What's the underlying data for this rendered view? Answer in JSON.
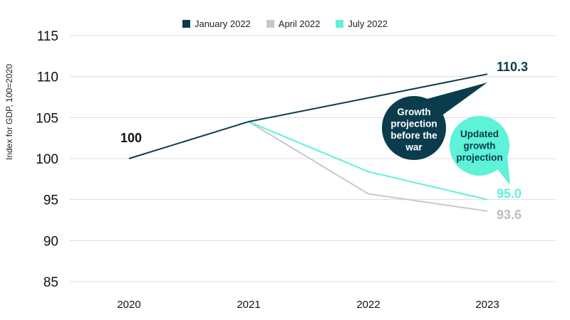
{
  "chart_data": {
    "type": "line",
    "ylabel": "Index for GDP, 100=2020",
    "xlabel": "",
    "ylim": [
      85,
      115
    ],
    "yticks": [
      85,
      90,
      95,
      100,
      105,
      110,
      115
    ],
    "x": [
      "2020",
      "2021",
      "2022",
      "2023"
    ],
    "grid": "horizontal",
    "legend_position": "top-center",
    "series": [
      {
        "name": "January 2022",
        "color": "#0b3c4d",
        "values": [
          100,
          104.5,
          107.4,
          110.3
        ]
      },
      {
        "name": "April 2022",
        "color": "#c8c8c8",
        "values": [
          null,
          104.5,
          95.7,
          93.6
        ]
      },
      {
        "name": "July 2022",
        "color": "#5ef2d8",
        "values": [
          null,
          104.5,
          98.4,
          95.0
        ]
      }
    ],
    "annotations": {
      "start_label": "100",
      "end_labels": [
        "110.3",
        "93.6",
        "95.0"
      ],
      "bubble_before_war": [
        "Growth",
        "projection",
        "before the",
        "war"
      ],
      "bubble_updated": [
        "Updated",
        "growth",
        "projection"
      ]
    }
  }
}
